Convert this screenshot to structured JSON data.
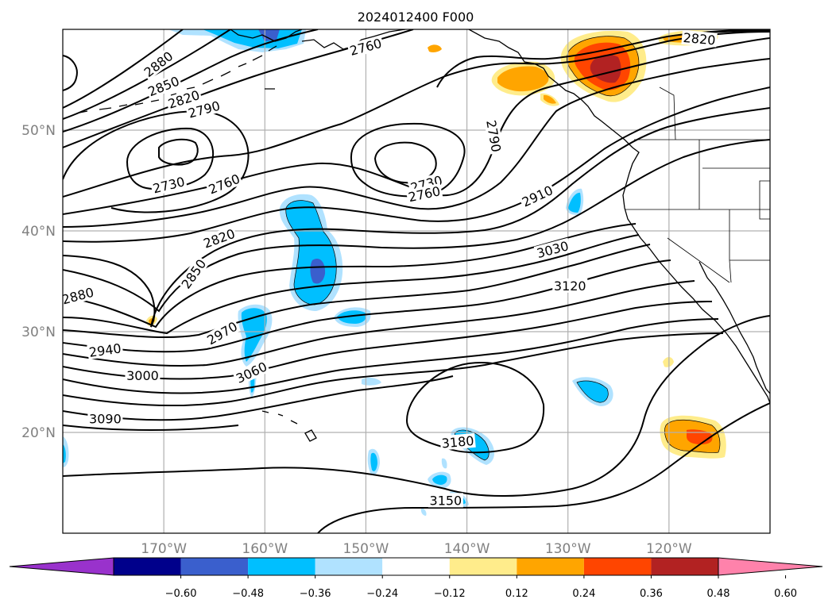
{
  "title": "2024012400 F000",
  "map": {
    "lon_range": [
      -180,
      -110
    ],
    "lat_range": [
      10,
      60
    ],
    "lon_ticks": [
      {
        "lon": -170,
        "label": "170°W"
      },
      {
        "lon": -160,
        "label": "160°W"
      },
      {
        "lon": -150,
        "label": "150°W"
      },
      {
        "lon": -140,
        "label": "140°W"
      },
      {
        "lon": -130,
        "label": "130°W"
      },
      {
        "lon": -120,
        "label": "120°W"
      }
    ],
    "lat_ticks": [
      {
        "lat": 20,
        "label": "20°N"
      },
      {
        "lat": 30,
        "label": "30°N"
      },
      {
        "lat": 40,
        "label": "40°N"
      },
      {
        "lat": 50,
        "label": "50°N"
      }
    ],
    "grid": true
  },
  "contour_labels": [
    {
      "text": "2880",
      "lon": -170.5,
      "lat": 56.5,
      "rot": -38
    },
    {
      "text": "2850",
      "lon": -170,
      "lat": 54.3,
      "rot": -22
    },
    {
      "text": "2820",
      "lon": -168,
      "lat": 53,
      "rot": -18
    },
    {
      "text": "2790",
      "lon": -166,
      "lat": 52,
      "rot": -15
    },
    {
      "text": "2760",
      "lon": -150,
      "lat": 58.2,
      "rot": -15
    },
    {
      "text": "2820",
      "lon": -117,
      "lat": 59,
      "rot": 5
    },
    {
      "text": "2790",
      "lon": -137.4,
      "lat": 49.4,
      "rot": 80
    },
    {
      "text": "2730",
      "lon": -169.5,
      "lat": 44.5,
      "rot": -14
    },
    {
      "text": "2760",
      "lon": -164,
      "lat": 44.6,
      "rot": -22
    },
    {
      "text": "2730",
      "lon": -144,
      "lat": 44.6,
      "rot": -15
    },
    {
      "text": "2760",
      "lon": -144.2,
      "lat": 43.6,
      "rot": -12
    },
    {
      "text": "2910",
      "lon": -133,
      "lat": 43.4,
      "rot": -25
    },
    {
      "text": "2820",
      "lon": -164.5,
      "lat": 39.2,
      "rot": -20
    },
    {
      "text": "3030",
      "lon": -131.5,
      "lat": 38.1,
      "rot": -15
    },
    {
      "text": "2850",
      "lon": -167,
      "lat": 35.7,
      "rot": -55
    },
    {
      "text": "3120",
      "lon": -129.8,
      "lat": 34.5,
      "rot": 0
    },
    {
      "text": "2880",
      "lon": -178.5,
      "lat": 33.5,
      "rot": -15
    },
    {
      "text": "2970",
      "lon": -164.2,
      "lat": 29.8,
      "rot": -30
    },
    {
      "text": "2940",
      "lon": -175.8,
      "lat": 28.1,
      "rot": -8
    },
    {
      "text": "3000",
      "lon": -172.1,
      "lat": 25.6,
      "rot": 0
    },
    {
      "text": "3060",
      "lon": -161.3,
      "lat": 25.9,
      "rot": -25
    },
    {
      "text": "3090",
      "lon": -175.8,
      "lat": 21.3,
      "rot": 0
    },
    {
      "text": "3180",
      "lon": -140.9,
      "lat": 19,
      "rot": -5
    },
    {
      "text": "3150",
      "lon": -142.1,
      "lat": 13.2,
      "rot": 0
    }
  ],
  "colorbar": {
    "colors": [
      "#9932cc",
      "#00008b",
      "#3a5fcd",
      "#00bfff",
      "#b0e2ff",
      "#ffffff",
      "#ffec8b",
      "#ffa500",
      "#ff4500",
      "#b22222",
      "#ff82ab"
    ],
    "tick_labels": [
      "−0.60",
      "−0.48",
      "−0.36",
      "−0.24",
      "−0.12",
      "0.12",
      "0.24",
      "0.36",
      "0.48",
      "0.60"
    ],
    "extend": "both"
  },
  "fill_colors": {
    "light_blue": "#b0e2ff",
    "blue": "#00bfff",
    "royal": "#3a5fcd",
    "yellow": "#ffec8b",
    "orange": "#ffa500",
    "red_orange": "#ff4500",
    "dark_red": "#b22222"
  }
}
